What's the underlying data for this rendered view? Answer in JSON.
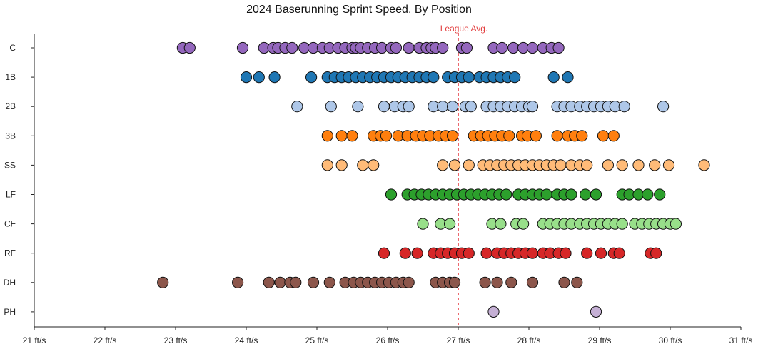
{
  "chart_data": {
    "type": "scatter",
    "title": "2024 Baserunning Sprint Speed, By Position",
    "xlabel": "",
    "ylabel": "",
    "xlim": [
      21,
      31
    ],
    "x_ticks": [
      "21 ft/s",
      "22 ft/s",
      "23 ft/s",
      "24 ft/s",
      "25 ft/s",
      "26 ft/s",
      "27 ft/s",
      "28 ft/s",
      "29 ft/s",
      "30 ft/s",
      "31 ft/s"
    ],
    "categories": [
      "C",
      "1B",
      "2B",
      "3B",
      "SS",
      "LF",
      "CF",
      "RF",
      "DH",
      "PH"
    ],
    "reference_line": {
      "label": "League Avg.",
      "x": 27.0,
      "color": "#e8424a"
    },
    "grid": false,
    "legend": "none",
    "series": [
      {
        "category": "C",
        "color": "#9467bd",
        "values": [
          23.1,
          23.2,
          23.95,
          24.25,
          24.38,
          24.45,
          24.55,
          24.65,
          24.82,
          24.95,
          25.08,
          25.18,
          25.3,
          25.4,
          25.5,
          25.55,
          25.62,
          25.72,
          25.82,
          25.92,
          26.05,
          26.12,
          26.3,
          26.45,
          26.55,
          26.62,
          26.68,
          26.78,
          27.05,
          27.12,
          27.5,
          27.62,
          27.78,
          27.92,
          28.05,
          28.2,
          28.32,
          28.42
        ]
      },
      {
        "category": "1B",
        "color": "#1f77b4",
        "values": [
          24.0,
          24.18,
          24.4,
          24.92,
          25.15,
          25.25,
          25.35,
          25.45,
          25.55,
          25.65,
          25.75,
          25.85,
          25.95,
          26.05,
          26.15,
          26.25,
          26.35,
          26.45,
          26.55,
          26.65,
          26.85,
          26.95,
          27.05,
          27.15,
          27.3,
          27.4,
          27.5,
          27.6,
          27.7,
          27.8,
          28.35,
          28.55
        ]
      },
      {
        "category": "2B",
        "color": "#aec7e8",
        "values": [
          24.72,
          25.2,
          25.58,
          25.95,
          26.1,
          26.22,
          26.3,
          26.65,
          26.78,
          26.92,
          27.1,
          27.18,
          27.4,
          27.5,
          27.6,
          27.7,
          27.8,
          27.9,
          28.0,
          28.05,
          28.4,
          28.5,
          28.6,
          28.72,
          28.82,
          28.92,
          29.02,
          29.12,
          29.22,
          29.35,
          29.9
        ]
      },
      {
        "category": "3B",
        "color": "#ff7f0e",
        "values": [
          25.15,
          25.35,
          25.5,
          25.8,
          25.9,
          25.98,
          26.15,
          26.28,
          26.4,
          26.5,
          26.6,
          26.72,
          26.82,
          26.92,
          27.22,
          27.32,
          27.42,
          27.52,
          27.62,
          27.72,
          27.9,
          27.98,
          28.1,
          28.4,
          28.55,
          28.65,
          28.75,
          29.05,
          29.2
        ]
      },
      {
        "category": "SS",
        "color": "#ffbb78",
        "values": [
          25.15,
          25.35,
          25.65,
          25.8,
          26.78,
          26.95,
          27.15,
          27.35,
          27.45,
          27.55,
          27.65,
          27.75,
          27.85,
          27.95,
          28.05,
          28.15,
          28.25,
          28.35,
          28.45,
          28.6,
          28.72,
          28.82,
          29.12,
          29.32,
          29.55,
          29.78,
          29.98,
          30.48
        ]
      },
      {
        "category": "LF",
        "color": "#2ca02c",
        "values": [
          26.05,
          26.28,
          26.38,
          26.48,
          26.58,
          26.68,
          26.78,
          26.88,
          26.98,
          27.08,
          27.18,
          27.28,
          27.38,
          27.48,
          27.58,
          27.68,
          27.85,
          27.95,
          28.05,
          28.15,
          28.25,
          28.4,
          28.5,
          28.6,
          28.8,
          28.95,
          29.32,
          29.42,
          29.55,
          29.68,
          29.85
        ]
      },
      {
        "category": "CF",
        "color": "#98df8a",
        "values": [
          26.5,
          26.75,
          26.88,
          27.48,
          27.6,
          27.82,
          27.92,
          28.2,
          28.3,
          28.4,
          28.5,
          28.6,
          28.72,
          28.82,
          28.92,
          29.02,
          29.12,
          29.22,
          29.32,
          29.5,
          29.6,
          29.7,
          29.8,
          29.9,
          30.0,
          30.08
        ]
      },
      {
        "category": "RF",
        "color": "#d62728",
        "values": [
          25.95,
          26.25,
          26.42,
          26.65,
          26.75,
          26.85,
          26.95,
          27.05,
          27.15,
          27.4,
          27.55,
          27.65,
          27.75,
          27.85,
          27.95,
          28.05,
          28.2,
          28.3,
          28.42,
          28.52,
          28.82,
          29.02,
          29.2,
          29.28,
          29.72,
          29.8
        ]
      },
      {
        "category": "DH",
        "color": "#8c564b",
        "values": [
          22.82,
          23.88,
          24.32,
          24.48,
          24.62,
          24.7,
          24.95,
          25.18,
          25.4,
          25.52,
          25.62,
          25.72,
          25.82,
          25.92,
          26.02,
          26.12,
          26.22,
          26.3,
          26.68,
          26.78,
          26.88,
          26.95,
          27.38,
          27.55,
          27.75,
          28.05,
          28.5,
          28.68
        ]
      },
      {
        "category": "PH",
        "color": "#c5b0d5",
        "values": [
          27.5,
          28.95
        ]
      }
    ]
  }
}
